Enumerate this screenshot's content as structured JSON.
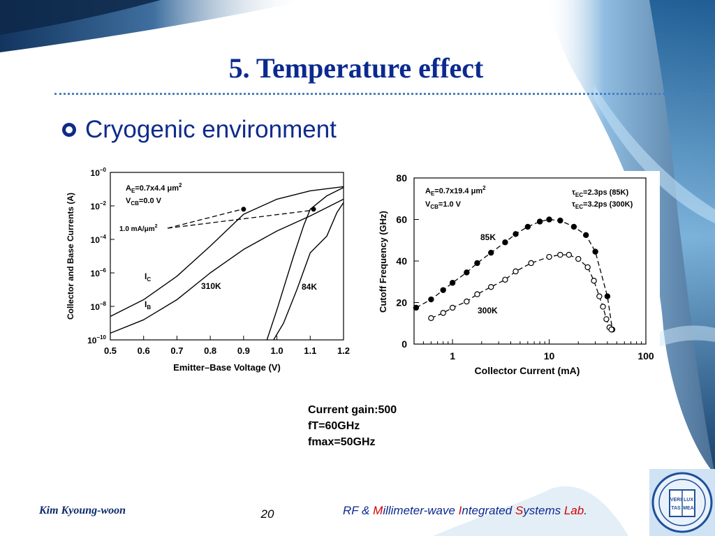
{
  "slide": {
    "title": "5. Temperature effect",
    "bullet": "Cryogenic environment",
    "notes": [
      "Current gain:500",
      "fT=60GHz",
      "fmax=50GHz"
    ],
    "footer": {
      "author": "Kim Kyoung-woon",
      "page": "20",
      "lab_segments": [
        {
          "t": "RF & ",
          "red": false
        },
        {
          "t": "M",
          "red": true
        },
        {
          "t": "illimeter-wave ",
          "red": false
        },
        {
          "t": "I",
          "red": true
        },
        {
          "t": "ntegrated ",
          "red": false
        },
        {
          "t": "S",
          "red": true
        },
        {
          "t": "ystems ",
          "red": false
        },
        {
          "t": "Lab",
          "red": true
        },
        {
          "t": ".",
          "red": false
        }
      ]
    },
    "logo_text": [
      "VERI",
      "LUX",
      "TAS",
      "MEA"
    ],
    "colors": {
      "title": "#0b2a8f",
      "accent_red": "#d40000",
      "bg_blue": "#1b4f86"
    }
  },
  "chart_data": [
    {
      "type": "line",
      "title": "",
      "xlabel": "Emitter–Base Voltage (V)",
      "ylabel": "Collector and Base Currents (A)",
      "xlim": [
        0.5,
        1.2
      ],
      "ylim_log10": [
        -10,
        0
      ],
      "x_ticks": [
        "0.5",
        "0.6",
        "0.7",
        "0.8",
        "0.9",
        "1.0",
        "1.1",
        "1.2"
      ],
      "y_ticks": [
        {
          "base": "10",
          "exp": "−0"
        },
        {
          "base": "10",
          "exp": "−2"
        },
        {
          "base": "10",
          "exp": "−4"
        },
        {
          "base": "10",
          "exp": "−6"
        },
        {
          "base": "10",
          "exp": "−8"
        },
        {
          "base": "10",
          "exp": "−10"
        }
      ],
      "annotations": {
        "ae": {
          "main": "A",
          "sub": "E",
          "rest": "=0.7x4.4 μm",
          "sup": "2"
        },
        "vcb": {
          "main": "V",
          "sub": "CB",
          "rest": "=0.0  V"
        },
        "current_density": {
          "main": "1.0 mA/μm",
          "sup": "2"
        },
        "ic": {
          "main": "I",
          "sub": "C"
        },
        "ib": {
          "main": "I",
          "sub": "B"
        },
        "t310": "310K",
        "t84": "84K"
      },
      "series": [
        {
          "name": "I_C 310K",
          "x": [
            0.5,
            0.6,
            0.7,
            0.8,
            0.9,
            1.0,
            1.1,
            1.2
          ],
          "log10_y": [
            -8.6,
            -7.6,
            -6.2,
            -4.4,
            -2.5,
            -1.6,
            -1.1,
            -0.85
          ]
        },
        {
          "name": "I_B 310K",
          "x": [
            0.5,
            0.6,
            0.7,
            0.8,
            0.9,
            1.0,
            1.1,
            1.2
          ],
          "log10_y": [
            -9.6,
            -8.8,
            -7.6,
            -6.0,
            -4.6,
            -3.5,
            -2.6,
            -1.6
          ]
        },
        {
          "name": "I_C 84K",
          "x": [
            0.97,
            1.0,
            1.05,
            1.08,
            1.1,
            1.15,
            1.2
          ],
          "log10_y": [
            -10,
            -8.2,
            -5.0,
            -3.2,
            -2.2,
            -1.4,
            -0.9
          ]
        },
        {
          "name": "I_B 84K",
          "x": [
            0.99,
            1.02,
            1.06,
            1.1,
            1.15,
            1.18,
            1.2
          ],
          "log10_y": [
            -10,
            -9.0,
            -7.0,
            -4.8,
            -3.8,
            -2.4,
            -1.8
          ]
        }
      ]
    },
    {
      "type": "line",
      "title": "",
      "xlabel": "Collector Current  (mA)",
      "ylabel": "Cutoff Frequency  (GHz)",
      "x_scale": "log",
      "xlim": [
        0.4,
        100
      ],
      "ylim": [
        0,
        80
      ],
      "x_ticks": [
        "1",
        "10",
        "100"
      ],
      "y_ticks": [
        "0",
        "20",
        "40",
        "60",
        "80"
      ],
      "annotations": {
        "ae": {
          "main": "A",
          "sub": "E",
          "rest": "=0.7x19.4 μm",
          "sup": "2"
        },
        "vcb": {
          "main": "V",
          "sub": "CB",
          "rest": "=1.0 V"
        },
        "tau85": {
          "main": "τ",
          "sub": "EC",
          "rest": "=2.3ps  (85K)"
        },
        "tau300": {
          "main": "τ",
          "sub": "EC",
          "rest": "=3.2ps  (300K)"
        },
        "t85": "85K",
        "t300": "300K"
      },
      "series": [
        {
          "name": "85K",
          "marker": "filled",
          "x": [
            0.42,
            0.6,
            0.8,
            1.0,
            1.4,
            1.8,
            2.5,
            3.5,
            4.5,
            6.0,
            8.0,
            10.0,
            13.0,
            18.0,
            24.0,
            30.0,
            40.0,
            45.0
          ],
          "y": [
            17.5,
            21.5,
            26,
            29.5,
            34.5,
            39,
            44,
            49,
            53,
            56.5,
            59,
            60,
            59.5,
            56.5,
            52.5,
            44.5,
            23,
            7
          ]
        },
        {
          "name": "300K",
          "marker": "open",
          "x": [
            0.6,
            0.8,
            1.0,
            1.4,
            1.8,
            2.5,
            3.5,
            4.5,
            6.5,
            10.0,
            13.0,
            16.0,
            20.0,
            25.0,
            29.0,
            33.0,
            36.0,
            39.0,
            42.0,
            44.0
          ],
          "y": [
            12.5,
            15,
            17.5,
            20.5,
            24,
            27.5,
            31,
            35,
            39,
            42,
            43,
            43,
            41,
            37,
            30.5,
            23,
            18,
            12,
            8,
            7
          ]
        }
      ]
    }
  ]
}
